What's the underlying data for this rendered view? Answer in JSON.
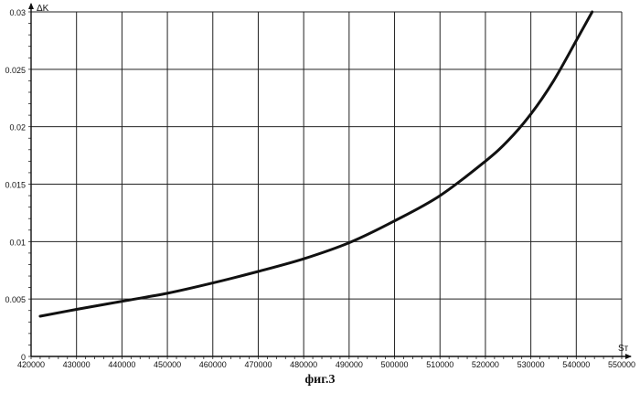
{
  "chart_data": {
    "type": "line",
    "title": "",
    "xlabel": "Sᴛ",
    "ylabel": "ΔK",
    "xlim": [
      420000,
      550000
    ],
    "ylim": [
      0,
      0.03
    ],
    "x_ticks": [
      "420000",
      "430000",
      "440000",
      "450000",
      "460000",
      "470000",
      "480000",
      "490000",
      "500000",
      "510000",
      "520000",
      "530000",
      "540000",
      "550000"
    ],
    "y_ticks": [
      "0",
      "0.005",
      "0.01",
      "0.015",
      "0.02",
      "0.025",
      "0.03"
    ],
    "grid": true,
    "legend": "none",
    "line_color": "#111111",
    "series": [
      {
        "x": [
          422000,
          430000,
          440000,
          450000,
          460000,
          470000,
          480000,
          490000,
          500000,
          510000,
          520000,
          525000,
          530000,
          535000,
          540000,
          543500
        ],
        "y": [
          0.0035,
          0.0041,
          0.0048,
          0.0055,
          0.0064,
          0.0074,
          0.0085,
          0.0099,
          0.0118,
          0.014,
          0.017,
          0.0188,
          0.0211,
          0.024,
          0.0275,
          0.03
        ]
      }
    ]
  },
  "caption": "фиг.3"
}
